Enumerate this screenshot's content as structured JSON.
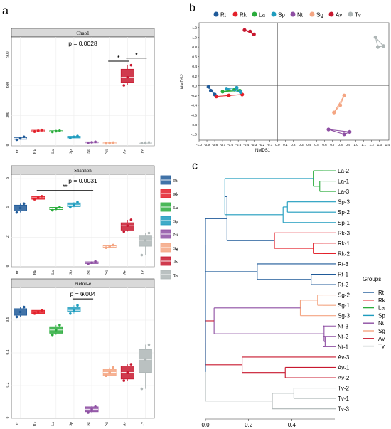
{
  "panels": {
    "a": "a",
    "b": "b",
    "c": "c"
  },
  "groups": [
    {
      "code": "Rt",
      "color": "#1f5a99"
    },
    {
      "code": "Rk",
      "color": "#e3202a"
    },
    {
      "code": "La",
      "color": "#2aac3c"
    },
    {
      "code": "Sp",
      "color": "#1e9cbe"
    },
    {
      "code": "Nt",
      "color": "#8e4fa3"
    },
    {
      "code": "Sg",
      "color": "#f4a582"
    },
    {
      "code": "Av",
      "color": "#c8182f"
    },
    {
      "code": "Tv",
      "color": "#aeb6b6"
    }
  ],
  "chart_data": [
    {
      "type": "box",
      "title": "Chao1",
      "p_label": "p = 0.0028",
      "categories": [
        "Rt",
        "Rk",
        "La",
        "Sp",
        "Nt",
        "Sg",
        "Av",
        "Tv"
      ],
      "ylim": [
        0,
        1080
      ],
      "yticks": [
        0,
        300,
        600,
        900
      ],
      "boxes": [
        {
          "q1": 65,
          "med": 75,
          "q3": 88,
          "pts": [
            60,
            75,
            90
          ]
        },
        {
          "q1": 140,
          "med": 148,
          "q3": 155,
          "pts": [
            140,
            150,
            158
          ]
        },
        {
          "q1": 138,
          "med": 143,
          "q3": 150,
          "pts": [
            138,
            145,
            150
          ]
        },
        {
          "q1": 78,
          "med": 88,
          "q3": 95,
          "pts": [
            75,
            90,
            98
          ]
        },
        {
          "q1": 30,
          "med": 35,
          "q3": 40,
          "pts": [
            30,
            35,
            40
          ]
        },
        {
          "q1": 25,
          "med": 28,
          "q3": 32,
          "pts": [
            25,
            28,
            32
          ]
        },
        {
          "q1": 630,
          "med": 680,
          "q3": 760,
          "pts": [
            600,
            680,
            800
          ]
        },
        {
          "q1": 28,
          "med": 31,
          "q3": 34,
          "pts": [
            28,
            31,
            34
          ]
        }
      ],
      "sig": [
        {
          "from": 6,
          "to": 7,
          "y": 840,
          "label": "*"
        },
        {
          "from": 7,
          "to": 8,
          "y": 870,
          "label": "*"
        }
      ]
    },
    {
      "type": "box",
      "title": "Shannon",
      "p_label": "p = 0.0031",
      "categories": [
        "Rt",
        "Rk",
        "La",
        "Sp",
        "Nt",
        "Sg",
        "Av",
        "Tv"
      ],
      "ylim": [
        0,
        6.3
      ],
      "yticks": [
        0,
        2,
        4,
        6
      ],
      "boxes": [
        {
          "q1": 3.8,
          "med": 4.0,
          "q3": 4.2,
          "pts": [
            3.7,
            4.0,
            4.3
          ]
        },
        {
          "q1": 4.6,
          "med": 4.7,
          "q3": 4.8,
          "pts": [
            4.6,
            4.7,
            4.8
          ]
        },
        {
          "q1": 3.9,
          "med": 3.95,
          "q3": 4.05,
          "pts": [
            3.85,
            3.95,
            4.05
          ]
        },
        {
          "q1": 4.1,
          "med": 4.2,
          "q3": 4.35,
          "pts": [
            4.05,
            4.2,
            4.4
          ]
        },
        {
          "q1": 0.22,
          "med": 0.28,
          "q3": 0.34,
          "pts": [
            0.2,
            0.28,
            0.36
          ]
        },
        {
          "q1": 1.3,
          "med": 1.38,
          "q3": 1.45,
          "pts": [
            1.3,
            1.38,
            1.48
          ]
        },
        {
          "q1": 2.5,
          "med": 2.8,
          "q3": 3.0,
          "pts": [
            2.4,
            2.8,
            3.2
          ]
        },
        {
          "q1": 1.4,
          "med": 1.8,
          "q3": 2.1,
          "pts": [
            0.8,
            1.8,
            2.3
          ]
        }
      ],
      "sig": [
        {
          "from": 2,
          "to": 5,
          "y": 5.2,
          "label": "**"
        }
      ]
    },
    {
      "type": "box",
      "title": "Pielou-e",
      "p_label": "p = 0.004",
      "categories": [
        "Rt",
        "Rk",
        "La",
        "Sp",
        "Nt",
        "Sg",
        "Av",
        "Tv"
      ],
      "ylim": [
        0,
        0.8
      ],
      "yticks": [
        0,
        0.2,
        0.4,
        0.6
      ],
      "boxes": [
        {
          "q1": 0.63,
          "med": 0.65,
          "q3": 0.67,
          "pts": [
            0.62,
            0.65,
            0.68
          ]
        },
        {
          "q1": 0.64,
          "med": 0.65,
          "q3": 0.66,
          "pts": [
            0.64,
            0.65,
            0.66
          ]
        },
        {
          "q1": 0.52,
          "med": 0.54,
          "q3": 0.56,
          "pts": [
            0.51,
            0.54,
            0.57
          ]
        },
        {
          "q1": 0.65,
          "med": 0.66,
          "q3": 0.68,
          "pts": [
            0.64,
            0.66,
            0.69
          ]
        },
        {
          "q1": 0.04,
          "med": 0.055,
          "q3": 0.07,
          "pts": [
            0.035,
            0.055,
            0.075
          ]
        },
        {
          "q1": 0.26,
          "med": 0.28,
          "q3": 0.3,
          "pts": [
            0.26,
            0.28,
            0.31
          ]
        },
        {
          "q1": 0.24,
          "med": 0.28,
          "q3": 0.32,
          "pts": [
            0.23,
            0.28,
            0.33
          ]
        },
        {
          "q1": 0.28,
          "med": 0.36,
          "q3": 0.42,
          "pts": [
            0.18,
            0.36,
            0.45
          ]
        }
      ],
      "sig": [
        {
          "from": 4,
          "to": 5,
          "y": 0.73,
          "label": "*"
        }
      ]
    },
    {
      "type": "scatter",
      "xlabel": "NMDS1",
      "ylabel": "NMDS2",
      "xlim": [
        -1.0,
        1.42
      ],
      "ylim": [
        -1.12,
        1.3
      ],
      "xticks": [
        -1.0,
        -0.9,
        -0.8,
        -0.7,
        -0.6,
        -0.5,
        -0.4,
        -0.3,
        -0.2,
        -0.1,
        0.0,
        0.1,
        0.2,
        0.3,
        0.4,
        0.5,
        0.6,
        0.7,
        0.8,
        0.9,
        1.0,
        1.1,
        1.2,
        1.3,
        1.4
      ],
      "yticks": [
        -1.0,
        -0.8,
        -0.6,
        -0.4,
        -0.2,
        0.0,
        0.2,
        0.4,
        0.6,
        0.8,
        1.0,
        1.2
      ],
      "series": [
        {
          "group": "Rt",
          "points": [
            [
              -0.88,
              -0.02
            ],
            [
              -0.85,
              -0.1
            ],
            [
              -0.8,
              -0.18
            ]
          ]
        },
        {
          "group": "Rk",
          "points": [
            [
              -0.78,
              -0.22
            ],
            [
              -0.62,
              -0.2
            ],
            [
              -0.45,
              -0.18
            ]
          ]
        },
        {
          "group": "La",
          "points": [
            [
              -0.7,
              -0.12
            ],
            [
              -0.55,
              -0.08
            ],
            [
              -0.48,
              -0.1
            ]
          ]
        },
        {
          "group": "Sp",
          "points": [
            [
              -0.65,
              -0.06
            ],
            [
              -0.52,
              -0.04
            ],
            [
              -0.47,
              -0.13
            ]
          ]
        },
        {
          "group": "Nt",
          "points": [
            [
              0.65,
              -0.9
            ],
            [
              0.85,
              -1.0
            ],
            [
              0.92,
              -0.95
            ]
          ]
        },
        {
          "group": "Sg",
          "points": [
            [
              0.72,
              -0.55
            ],
            [
              0.8,
              -0.4
            ],
            [
              0.85,
              -0.2
            ]
          ]
        },
        {
          "group": "Av",
          "points": [
            [
              -0.42,
              1.15
            ],
            [
              -0.35,
              1.12
            ],
            [
              -0.3,
              1.06
            ]
          ]
        },
        {
          "group": "Tv",
          "points": [
            [
              1.25,
              1.0
            ],
            [
              1.28,
              0.8
            ],
            [
              1.35,
              0.82
            ]
          ]
        }
      ]
    },
    {
      "type": "dendrogram",
      "xticks": [
        0.0,
        0.2,
        0.4
      ],
      "xlim": [
        0,
        0.6
      ],
      "legend_title": "Groups",
      "leaves": [
        "La-2",
        "La-1",
        "La-3",
        "Sp-3",
        "Sp-2",
        "Sp-1",
        "Rk-3",
        "Rk-1",
        "Rk-2",
        "Rt-3",
        "Rt-1",
        "Rt-2",
        "Sg-2",
        "Sg-1",
        "Sg-3",
        "Nt-3",
        "Nt-2",
        "Nt-1",
        "Av-3",
        "Av-1",
        "Av-2",
        "Tv-2",
        "Tv-1",
        "Tv-3"
      ],
      "leaf_colors": [
        "#2aac3c",
        "#2aac3c",
        "#2aac3c",
        "#1e9cbe",
        "#1e9cbe",
        "#1e9cbe",
        "#e3202a",
        "#e3202a",
        "#e3202a",
        "#1f5a99",
        "#1f5a99",
        "#1f5a99",
        "#f4a582",
        "#f4a582",
        "#f4a582",
        "#8e4fa3",
        "#8e4fa3",
        "#8e4fa3",
        "#c8182f",
        "#c8182f",
        "#c8182f",
        "#aeb6b6",
        "#aeb6b6",
        "#aeb6b6"
      ]
    }
  ]
}
